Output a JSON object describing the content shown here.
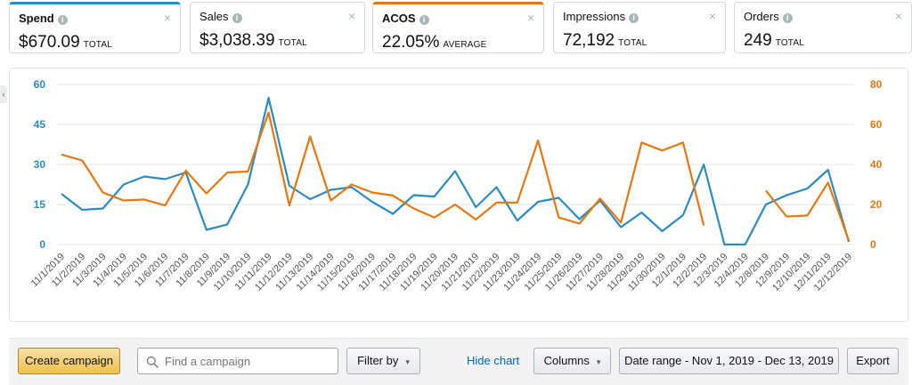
{
  "metrics": [
    {
      "title": "Spend",
      "value": "$670.09",
      "unit": "TOTAL",
      "close": "×"
    },
    {
      "title": "Sales",
      "value": "$3,038.39",
      "unit": "TOTAL",
      "close": "×"
    },
    {
      "title": "ACOS",
      "value": "22.05%",
      "unit": "AVERAGE",
      "close": "×"
    },
    {
      "title": "Impressions",
      "value": "72,192",
      "unit": "TOTAL",
      "close": "×"
    },
    {
      "title": "Orders",
      "value": "249",
      "unit": "TOTAL",
      "close": "×"
    }
  ],
  "info_glyph": "i",
  "colors": {
    "spend": "#2c8cbf",
    "acos": "#e47911",
    "grid": "#e6e6e6",
    "tick": "#555555"
  },
  "chart_data": {
    "type": "line",
    "x": [
      "11/1/2019",
      "11/2/2019",
      "11/3/2019",
      "11/4/2019",
      "11/5/2019",
      "11/6/2019",
      "11/7/2019",
      "11/8/2019",
      "11/9/2019",
      "11/10/2019",
      "11/11/2019",
      "11/12/2019",
      "11/13/2019",
      "11/14/2019",
      "11/15/2019",
      "11/16/2019",
      "11/17/2019",
      "11/18/2019",
      "11/19/2019",
      "11/20/2019",
      "11/21/2019",
      "11/22/2019",
      "11/23/2019",
      "11/24/2019",
      "11/25/2019",
      "11/26/2019",
      "11/27/2019",
      "11/28/2019",
      "11/29/2019",
      "11/30/2019",
      "12/1/2019",
      "12/2/2019",
      "12/3/2019",
      "12/4/2019",
      "12/8/2019",
      "12/9/2019",
      "12/10/2019",
      "12/11/2019",
      "12/12/2019"
    ],
    "series": [
      {
        "name": "Spend",
        "axis": "left",
        "color": "#2c8cbf",
        "values": [
          19,
          13,
          13.5,
          22.5,
          25.5,
          24.5,
          27,
          5.5,
          7.5,
          22.5,
          55,
          22,
          17,
          20.5,
          21.5,
          16,
          11.5,
          18.5,
          18,
          27.5,
          14,
          21.5,
          9,
          16,
          17.5,
          9.5,
          16.5,
          6.5,
          12,
          5,
          11,
          30,
          0,
          0,
          15,
          18.5,
          21,
          28,
          1
        ]
      },
      {
        "name": "ACOS",
        "axis": "right",
        "color": "#e47911",
        "values": [
          45,
          42,
          26,
          22,
          22.5,
          19.5,
          37,
          25.5,
          36,
          36.5,
          66,
          19.5,
          54,
          22,
          30,
          26,
          24.5,
          18,
          13.5,
          20,
          12.5,
          21,
          21,
          52,
          13.5,
          10.5,
          23,
          11,
          51,
          47,
          51,
          9.5,
          null,
          null,
          27,
          14,
          14.5,
          31,
          2
        ]
      }
    ],
    "yleft": {
      "ticks": [
        0,
        15,
        30,
        45,
        60
      ],
      "lim": [
        0,
        60
      ]
    },
    "yright": {
      "ticks": [
        0,
        20,
        40,
        60,
        80
      ],
      "lim": [
        0,
        80
      ]
    },
    "grid": true
  },
  "toolbar": {
    "create_label": "Create campaign",
    "search_placeholder": "Find a campaign",
    "filter_label": "Filter by",
    "hide_chart_label": "Hide chart",
    "columns_label": "Columns",
    "date_range_label": "Date range - Nov 1, 2019 - Dec 13, 2019",
    "export_label": "Export",
    "caret": "▾"
  }
}
